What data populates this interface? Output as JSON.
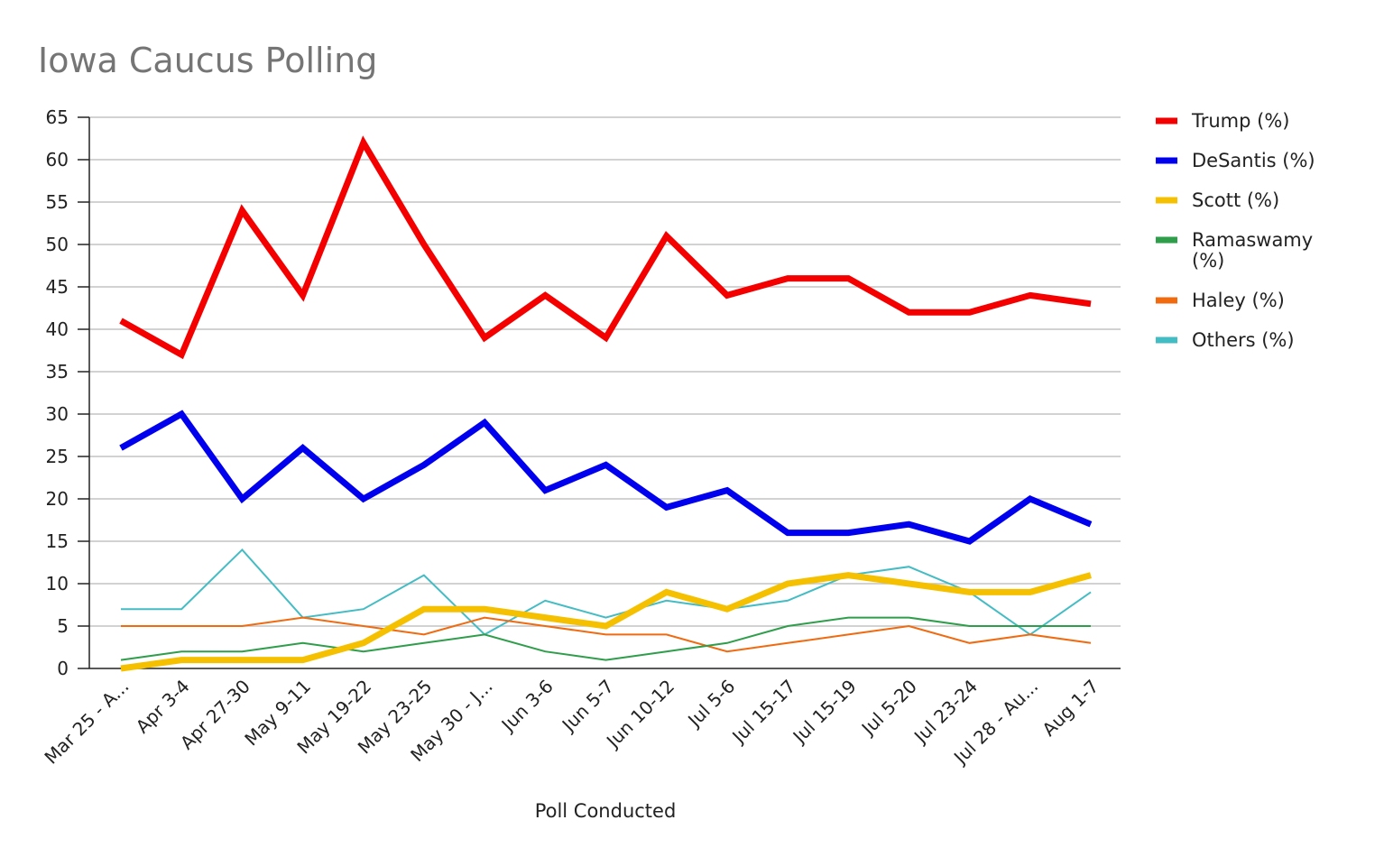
{
  "chart_data": {
    "type": "line",
    "title": "Iowa Caucus Polling",
    "xlabel": "Poll Conducted",
    "ylabel": "",
    "ylim": [
      0,
      65
    ],
    "yticks": [
      0,
      5,
      10,
      15,
      20,
      25,
      30,
      35,
      40,
      45,
      50,
      55,
      60,
      65
    ],
    "grid": true,
    "legend_position": "right",
    "categories": [
      "Mar 25 - A...",
      "Apr 3-4",
      "Apr 27-30",
      "May 9-11",
      "May 19-22",
      "May 23-25",
      "May 30 - J...",
      "Jun 3-6",
      "Jun 5-7",
      "Jun 10-12",
      "Jul 5-6",
      "Jul 15-17",
      "Jul 15-19",
      "Jul 5-20",
      "Jul 23-24",
      "Jul 28 - Au...",
      "Aug 1-7"
    ],
    "series": [
      {
        "name": "Trump (%)",
        "legend_lines": [
          "Trump (%)"
        ],
        "color": "#f40000",
        "weight": "thick",
        "values": [
          41,
          37,
          54,
          44,
          62,
          50,
          39,
          44,
          39,
          51,
          44,
          46,
          46,
          42,
          42,
          44,
          43
        ]
      },
      {
        "name": "DeSantis (%)",
        "legend_lines": [
          "DeSantis (%)"
        ],
        "color": "#0000ee",
        "weight": "thick",
        "values": [
          26,
          30,
          20,
          26,
          20,
          24,
          29,
          21,
          24,
          19,
          21,
          16,
          16,
          17,
          15,
          20,
          17
        ]
      },
      {
        "name": "Scott (%)",
        "legend_lines": [
          "Scott (%)"
        ],
        "color": "#f5c000",
        "weight": "thick",
        "values": [
          0,
          1,
          1,
          1,
          3,
          7,
          7,
          6,
          5,
          9,
          7,
          10,
          11,
          10,
          9,
          9,
          11
        ]
      },
      {
        "name": "Ramaswamy (%)",
        "legend_lines": [
          "Ramaswamy",
          "(%)"
        ],
        "color": "#2e9e4a",
        "weight": "thin",
        "values": [
          1,
          2,
          2,
          3,
          2,
          3,
          4,
          2,
          1,
          2,
          3,
          5,
          6,
          6,
          5,
          5,
          5
        ]
      },
      {
        "name": "Haley (%)",
        "legend_lines": [
          "Haley (%)"
        ],
        "color": "#f06a10",
        "weight": "thin",
        "values": [
          5,
          5,
          5,
          6,
          5,
          4,
          6,
          5,
          4,
          4,
          2,
          3,
          4,
          5,
          3,
          4,
          3
        ]
      },
      {
        "name": "Others (%)",
        "legend_lines": [
          "Others (%)"
        ],
        "color": "#44bcc4",
        "weight": "thin",
        "values": [
          7,
          7,
          14,
          6,
          7,
          11,
          4,
          8,
          6,
          8,
          7,
          8,
          11,
          12,
          9,
          4,
          9
        ]
      }
    ]
  }
}
